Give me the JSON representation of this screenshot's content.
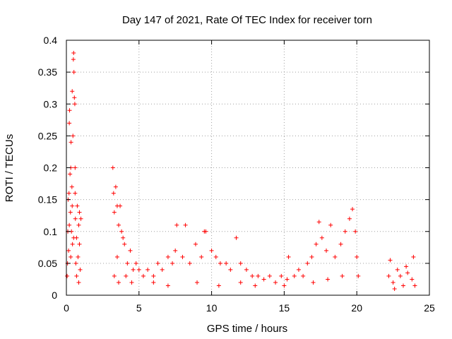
{
  "chart_data": {
    "type": "scatter",
    "title": "Day 147 of 2021, Rate Of TEC Index for receiver torn",
    "xlabel": "GPS time / hours",
    "ylabel": "ROTI / TECUs",
    "xlim": [
      0,
      25
    ],
    "ylim": [
      0,
      0.4
    ],
    "xticks": [
      0,
      5,
      10,
      15,
      20,
      25
    ],
    "xtick_labels": [
      "0",
      "5",
      "10",
      "15",
      "20",
      "25"
    ],
    "yticks": [
      0,
      0.05,
      0.1,
      0.15,
      0.2,
      0.25,
      0.3,
      0.35,
      0.4
    ],
    "ytick_labels": [
      "0",
      "0.05",
      "0.1",
      "0.15",
      "0.2",
      "0.25",
      "0.3",
      "0.35",
      "0.4"
    ],
    "grid": true,
    "marker": "+",
    "color": "#ff0000",
    "series": [
      {
        "points": [
          [
            0.05,
            0.03
          ],
          [
            0.08,
            0.05
          ],
          [
            0.1,
            0.1
          ],
          [
            0.12,
            0.15
          ],
          [
            0.15,
            0.07
          ],
          [
            0.18,
            0.16
          ],
          [
            0.2,
            0.27
          ],
          [
            0.22,
            0.29
          ],
          [
            0.25,
            0.19
          ],
          [
            0.28,
            0.13
          ],
          [
            0.3,
            0.2
          ],
          [
            0.32,
            0.24
          ],
          [
            0.35,
            0.1
          ],
          [
            0.38,
            0.17
          ],
          [
            0.4,
            0.32
          ],
          [
            0.42,
            0.08
          ],
          [
            0.45,
            0.25
          ],
          [
            0.48,
            0.37
          ],
          [
            0.5,
            0.38
          ],
          [
            0.52,
            0.35
          ],
          [
            0.55,
            0.31
          ],
          [
            0.58,
            0.3
          ],
          [
            0.6,
            0.2
          ],
          [
            0.62,
            0.12
          ],
          [
            0.65,
            0.05
          ],
          [
            0.7,
            0.09
          ],
          [
            0.75,
            0.14
          ],
          [
            0.8,
            0.06
          ],
          [
            0.85,
            0.11
          ],
          [
            0.9,
            0.08
          ],
          [
            0.95,
            0.04
          ],
          [
            1.0,
            0.12
          ],
          [
            0.3,
            0.06
          ],
          [
            0.5,
            0.09
          ],
          [
            0.7,
            0.03
          ],
          [
            0.9,
            0.13
          ],
          [
            0.6,
            0.16
          ],
          [
            0.4,
            0.14
          ],
          [
            0.2,
            0.11
          ],
          [
            0.85,
            0.02
          ],
          [
            3.2,
            0.2
          ],
          [
            3.25,
            0.16
          ],
          [
            3.3,
            0.13
          ],
          [
            3.4,
            0.17
          ],
          [
            3.5,
            0.14
          ],
          [
            3.6,
            0.11
          ],
          [
            3.7,
            0.14
          ],
          [
            3.8,
            0.1
          ],
          [
            3.9,
            0.09
          ],
          [
            3.5,
            0.06
          ],
          [
            4.0,
            0.08
          ],
          [
            4.2,
            0.05
          ],
          [
            4.4,
            0.07
          ],
          [
            4.6,
            0.04
          ],
          [
            4.8,
            0.05
          ],
          [
            5.0,
            0.04
          ],
          [
            3.3,
            0.03
          ],
          [
            3.6,
            0.02
          ],
          [
            4.1,
            0.03
          ],
          [
            4.5,
            0.02
          ],
          [
            5.3,
            0.03
          ],
          [
            5.6,
            0.04
          ],
          [
            6.0,
            0.03
          ],
          [
            6.3,
            0.05
          ],
          [
            6.6,
            0.04
          ],
          [
            7.0,
            0.06
          ],
          [
            7.3,
            0.05
          ],
          [
            7.5,
            0.07
          ],
          [
            7.6,
            0.11
          ],
          [
            8.0,
            0.06
          ],
          [
            8.2,
            0.11
          ],
          [
            8.5,
            0.05
          ],
          [
            8.9,
            0.08
          ],
          [
            9.3,
            0.06
          ],
          [
            9.5,
            0.1
          ],
          [
            9.6,
            0.1
          ],
          [
            10.0,
            0.07
          ],
          [
            10.3,
            0.06
          ],
          [
            10.6,
            0.05
          ],
          [
            11.0,
            0.05
          ],
          [
            11.3,
            0.04
          ],
          [
            11.7,
            0.09
          ],
          [
            12.0,
            0.05
          ],
          [
            12.4,
            0.04
          ],
          [
            12.8,
            0.03
          ],
          [
            13.2,
            0.03
          ],
          [
            13.6,
            0.025
          ],
          [
            14.0,
            0.03
          ],
          [
            14.4,
            0.02
          ],
          [
            14.8,
            0.03
          ],
          [
            15.2,
            0.025
          ],
          [
            15.3,
            0.06
          ],
          [
            15.7,
            0.03
          ],
          [
            16.0,
            0.04
          ],
          [
            16.3,
            0.03
          ],
          [
            16.6,
            0.05
          ],
          [
            16.9,
            0.06
          ],
          [
            17.2,
            0.08
          ],
          [
            17.4,
            0.115
          ],
          [
            17.6,
            0.09
          ],
          [
            17.9,
            0.07
          ],
          [
            18.2,
            0.11
          ],
          [
            18.5,
            0.06
          ],
          [
            18.9,
            0.08
          ],
          [
            19.2,
            0.1
          ],
          [
            19.5,
            0.12
          ],
          [
            19.7,
            0.135
          ],
          [
            19.9,
            0.1
          ],
          [
            20.0,
            0.06
          ],
          [
            20.1,
            0.03
          ],
          [
            7.0,
            0.015
          ],
          [
            9.0,
            0.02
          ],
          [
            10.5,
            0.015
          ],
          [
            12.0,
            0.02
          ],
          [
            13.0,
            0.015
          ],
          [
            15.0,
            0.015
          ],
          [
            17.0,
            0.02
          ],
          [
            18.0,
            0.025
          ],
          [
            19.0,
            0.03
          ],
          [
            6.0,
            0.02
          ],
          [
            22.2,
            0.03
          ],
          [
            22.3,
            0.055
          ],
          [
            22.5,
            0.02
          ],
          [
            22.8,
            0.04
          ],
          [
            23.0,
            0.03
          ],
          [
            23.2,
            0.015
          ],
          [
            23.5,
            0.035
          ],
          [
            23.8,
            0.025
          ],
          [
            23.9,
            0.06
          ],
          [
            24.0,
            0.015
          ],
          [
            22.6,
            0.01
          ],
          [
            23.4,
            0.045
          ]
        ]
      }
    ]
  }
}
